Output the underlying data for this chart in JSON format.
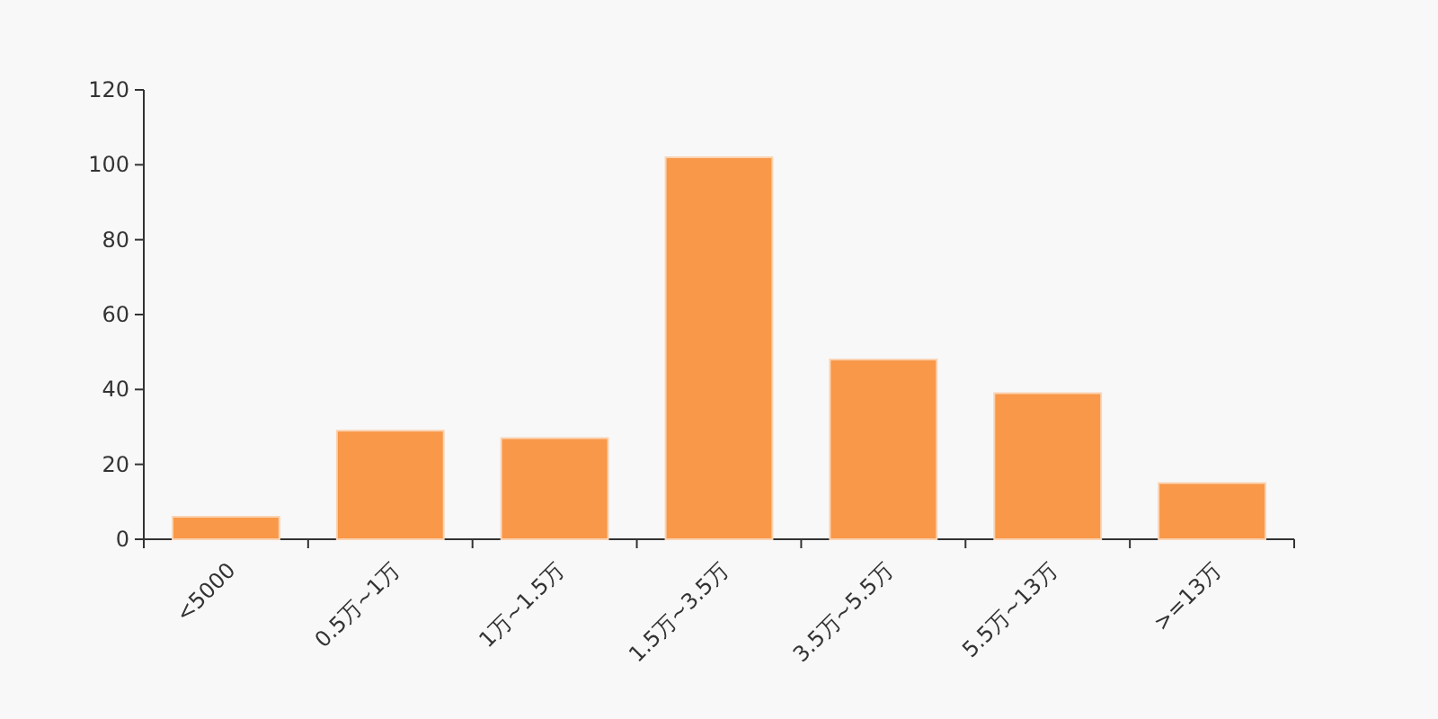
{
  "chart_data": {
    "type": "bar",
    "categories": [
      "<5000",
      "0.5万~1万",
      "1万~1.5万",
      "1.5万~3.5万",
      "3.5万~5.5万",
      "5.5万~13万",
      ">=13万"
    ],
    "values": [
      6,
      29,
      27,
      102,
      48,
      39,
      15
    ],
    "color": "#f89848",
    "ylim": [
      0,
      120
    ],
    "yticks": [
      0,
      20,
      40,
      60,
      80,
      100,
      120
    ],
    "grid": false
  }
}
